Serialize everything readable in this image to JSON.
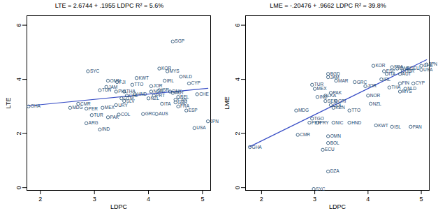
{
  "chart_data": [
    {
      "type": "scatter",
      "title": "LTE = 2.6744 + .1955 LDPC   R² = 5.6%",
      "x_label": "LDPC",
      "y_label": "LTE",
      "xlim": [
        1.75,
        5.15
      ],
      "ylim": [
        -0.1,
        6.35
      ],
      "xticks": [
        2,
        3,
        4,
        5
      ],
      "yticks": [
        0,
        2,
        4,
        6
      ],
      "color": "#1a476f",
      "line_color": "#3a4fc6",
      "marker": "circle",
      "fit": {
        "intercept": 2.6744,
        "slope": 0.1955
      },
      "points": [
        {
          "label": "GHA",
          "x": 1.78,
          "y": 3.0
        },
        {
          "label": "SYC",
          "x": 2.88,
          "y": 4.3
        },
        {
          "label": "OMN",
          "x": 3.25,
          "y": 3.95
        },
        {
          "label": "FJI",
          "x": 3.42,
          "y": 3.9
        },
        {
          "label": "KWT",
          "x": 3.78,
          "y": 4.05
        },
        {
          "label": "TTO",
          "x": 3.7,
          "y": 3.8
        },
        {
          "label": "JAM",
          "x": 3.22,
          "y": 3.72
        },
        {
          "label": "TUN",
          "x": 3.1,
          "y": 3.6
        },
        {
          "label": "PHL",
          "x": 3.4,
          "y": 3.55
        },
        {
          "label": "THA",
          "x": 3.55,
          "y": 3.55
        },
        {
          "label": "CHL",
          "x": 3.6,
          "y": 3.4
        },
        {
          "label": "HND",
          "x": 3.75,
          "y": 3.45
        },
        {
          "label": "GTM",
          "x": 3.5,
          "y": 3.3
        },
        {
          "label": "SLV",
          "x": 3.55,
          "y": 3.2
        },
        {
          "label": "URY",
          "x": 3.4,
          "y": 3.05
        },
        {
          "label": "CMR",
          "x": 2.7,
          "y": 3.1
        },
        {
          "label": "MDG",
          "x": 2.55,
          "y": 2.95
        },
        {
          "label": "PER",
          "x": 2.85,
          "y": 2.92
        },
        {
          "label": "MEX",
          "x": 3.15,
          "y": 2.95
        },
        {
          "label": "TUR",
          "x": 2.95,
          "y": 2.68
        },
        {
          "label": "PAK",
          "x": 3.25,
          "y": 2.6
        },
        {
          "label": "ARG",
          "x": 2.85,
          "y": 2.38
        },
        {
          "label": "IND",
          "x": 3.1,
          "y": 2.15
        },
        {
          "label": "COL",
          "x": 3.45,
          "y": 2.7
        },
        {
          "label": "GRC",
          "x": 3.9,
          "y": 2.72
        },
        {
          "label": "AUS",
          "x": 4.15,
          "y": 2.72
        },
        {
          "label": "NZL",
          "x": 4.0,
          "y": 3.3
        },
        {
          "label": "PRT",
          "x": 4.1,
          "y": 3.4
        },
        {
          "label": "ISR",
          "x": 4.2,
          "y": 3.6
        },
        {
          "label": "JOR",
          "x": 4.05,
          "y": 3.75
        },
        {
          "label": "NOR",
          "x": 4.05,
          "y": 3.55
        },
        {
          "label": "ITA",
          "x": 4.25,
          "y": 3.1
        },
        {
          "label": "DNK",
          "x": 4.4,
          "y": 3.55
        },
        {
          "label": "AUT",
          "x": 4.45,
          "y": 3.5
        },
        {
          "label": "BEL",
          "x": 4.55,
          "y": 3.35
        },
        {
          "label": "CAN",
          "x": 4.5,
          "y": 3.25
        },
        {
          "label": "GBR",
          "x": 4.5,
          "y": 3.15
        },
        {
          "label": "FRA",
          "x": 4.55,
          "y": 3.0
        },
        {
          "label": "ESP",
          "x": 4.7,
          "y": 2.85
        },
        {
          "label": "USA",
          "x": 4.85,
          "y": 2.2
        },
        {
          "label": "JPN",
          "x": 5.1,
          "y": 2.45
        },
        {
          "label": "CHE",
          "x": 4.9,
          "y": 3.45
        },
        {
          "label": "CYP",
          "x": 4.75,
          "y": 3.85
        },
        {
          "label": "NLD",
          "x": 4.6,
          "y": 4.1
        },
        {
          "label": "IRL",
          "x": 4.3,
          "y": 3.95
        },
        {
          "label": "KOR",
          "x": 4.2,
          "y": 4.4
        },
        {
          "label": "MYS",
          "x": 4.35,
          "y": 4.3
        },
        {
          "label": "SGP",
          "x": 4.45,
          "y": 5.4
        }
      ]
    },
    {
      "type": "scatter",
      "title": "LME = -.20476 + .9662 LDPC   R² = 39.8%",
      "x_label": "LDPC",
      "y_label": "LME",
      "xlim": [
        1.7,
        5.15
      ],
      "ylim": [
        -0.1,
        6.35
      ],
      "xticks": [
        2,
        3,
        4,
        5
      ],
      "yticks": [
        0,
        2,
        4,
        6
      ],
      "color": "#1a476f",
      "line_color": "#3a4fc6",
      "marker": "circle",
      "fit": {
        "intercept": -0.20476,
        "slope": 0.9662
      },
      "points": [
        {
          "label": "GHA",
          "x": 1.78,
          "y": 1.5
        },
        {
          "label": "SYC",
          "x": 2.98,
          "y": -0.05
        },
        {
          "label": "DZA",
          "x": 3.25,
          "y": 0.6
        },
        {
          "label": "ECU",
          "x": 3.15,
          "y": 1.4
        },
        {
          "label": "BOL",
          "x": 3.25,
          "y": 1.65
        },
        {
          "label": "OMN",
          "x": 3.25,
          "y": 1.9
        },
        {
          "label": "CMR",
          "x": 2.68,
          "y": 1.95
        },
        {
          "label": "MDG",
          "x": 2.65,
          "y": 2.85
        },
        {
          "label": "TGO",
          "x": 2.95,
          "y": 2.55
        },
        {
          "label": "PER",
          "x": 2.9,
          "y": 2.4
        },
        {
          "label": "PRY",
          "x": 3.05,
          "y": 2.4
        },
        {
          "label": "NIC",
          "x": 3.35,
          "y": 2.4
        },
        {
          "label": "TUR",
          "x": 2.95,
          "y": 3.8
        },
        {
          "label": "MEX",
          "x": 3.0,
          "y": 3.65
        },
        {
          "label": "BGD",
          "x": 3.25,
          "y": 4.2
        },
        {
          "label": "JAM",
          "x": 3.25,
          "y": 4.08
        },
        {
          "label": "MAR",
          "x": 3.4,
          "y": 3.95
        },
        {
          "label": "PAK",
          "x": 3.3,
          "y": 3.5
        },
        {
          "label": "IND",
          "x": 3.05,
          "y": 3.35
        },
        {
          "label": "LKA",
          "x": 3.2,
          "y": 3.4
        },
        {
          "label": "SEN",
          "x": 3.2,
          "y": 3.2
        },
        {
          "label": "CRI",
          "x": 3.4,
          "y": 3.2
        },
        {
          "label": "COL",
          "x": 3.3,
          "y": 3.05
        },
        {
          "label": "KEN",
          "x": 3.35,
          "y": 2.95
        },
        {
          "label": "TTO",
          "x": 3.65,
          "y": 2.85
        },
        {
          "label": "HND",
          "x": 3.65,
          "y": 2.4
        },
        {
          "label": "GRC",
          "x": 3.75,
          "y": 3.9
        },
        {
          "label": "JOR",
          "x": 3.95,
          "y": 3.75
        },
        {
          "label": "NOR",
          "x": 4.0,
          "y": 3.4
        },
        {
          "label": "NZL",
          "x": 4.05,
          "y": 3.1
        },
        {
          "label": "KWT",
          "x": 4.15,
          "y": 2.3
        },
        {
          "label": "ISL",
          "x": 4.45,
          "y": 2.25
        },
        {
          "label": "PAN",
          "x": 4.8,
          "y": 2.25
        },
        {
          "label": "MYS",
          "x": 4.6,
          "y": 3.55
        },
        {
          "label": "THA",
          "x": 4.4,
          "y": 3.7
        },
        {
          "label": "NLD",
          "x": 4.7,
          "y": 3.65
        },
        {
          "label": "FIN",
          "x": 4.6,
          "y": 3.85
        },
        {
          "label": "CYP",
          "x": 4.85,
          "y": 3.85
        },
        {
          "label": "IRL",
          "x": 4.25,
          "y": 4.0
        },
        {
          "label": "ITA",
          "x": 4.35,
          "y": 4.2
        },
        {
          "label": "ESP",
          "x": 4.3,
          "y": 4.3
        },
        {
          "label": "KOR",
          "x": 4.1,
          "y": 4.5
        },
        {
          "label": "FRA",
          "x": 4.45,
          "y": 4.45
        },
        {
          "label": "SWE",
          "x": 4.55,
          "y": 4.4
        },
        {
          "label": "AUT",
          "x": 4.6,
          "y": 4.2
        },
        {
          "label": "GBR",
          "x": 4.65,
          "y": 4.3
        },
        {
          "label": "DEU",
          "x": 4.75,
          "y": 4.4
        },
        {
          "label": "USA",
          "x": 5.0,
          "y": 4.35
        },
        {
          "label": "CHE",
          "x": 5.0,
          "y": 4.5
        },
        {
          "label": "JPN",
          "x": 5.1,
          "y": 4.55
        }
      ]
    }
  ]
}
